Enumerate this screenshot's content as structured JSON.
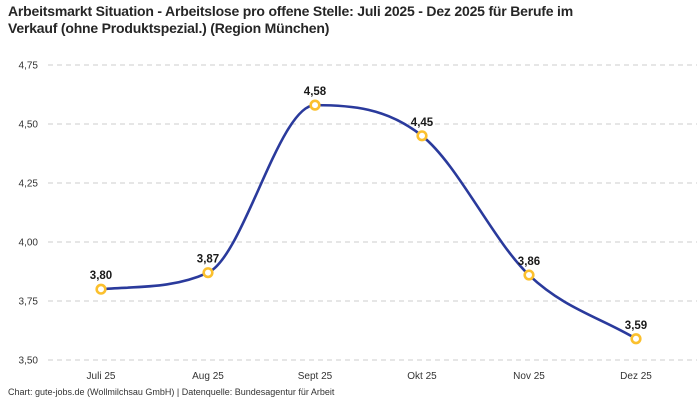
{
  "chart_data": {
    "type": "line",
    "title": "Arbeitsmarkt Situation - Arbeitslose pro offene Stelle: Juli 2025 - Dez 2025 für Berufe im Verkauf (ohne Produktspezial.) (Region München)",
    "categories": [
      "Juli 25",
      "Aug 25",
      "Sept 25",
      "Okt 25",
      "Nov 25",
      "Dez 25"
    ],
    "values": [
      3.8,
      3.87,
      4.58,
      4.45,
      3.86,
      3.59
    ],
    "point_labels": [
      "3,80",
      "3,87",
      "4,58",
      "4,45",
      "3,86",
      "3,59"
    ],
    "series_name": "Arbeitslose pro offene Stelle",
    "xlabel": "",
    "ylabel": "",
    "ylim": [
      3.5,
      4.75
    ],
    "yticks": [
      3.5,
      3.75,
      4.0,
      4.25,
      4.5,
      4.75
    ],
    "ytick_labels": [
      "3,50",
      "3,75",
      "4,00",
      "4,25",
      "4,50",
      "4,75"
    ],
    "grid": "horizontal-dashed",
    "legend": "none",
    "curve": "monotone",
    "colors": {
      "line": "#2a3a9c",
      "marker_ring": "#fbc02d",
      "marker_fill": "#ffffff",
      "grid": "#cccccc",
      "tick_text": "#333333",
      "point_label_text": "#1a1a1a",
      "title_text": "#262626"
    }
  },
  "footer": {
    "attribution": "Chart: gute-jobs.de (Wollmilchsau GmbH) | Datenquelle: Bundesagentur für Arbeit"
  }
}
